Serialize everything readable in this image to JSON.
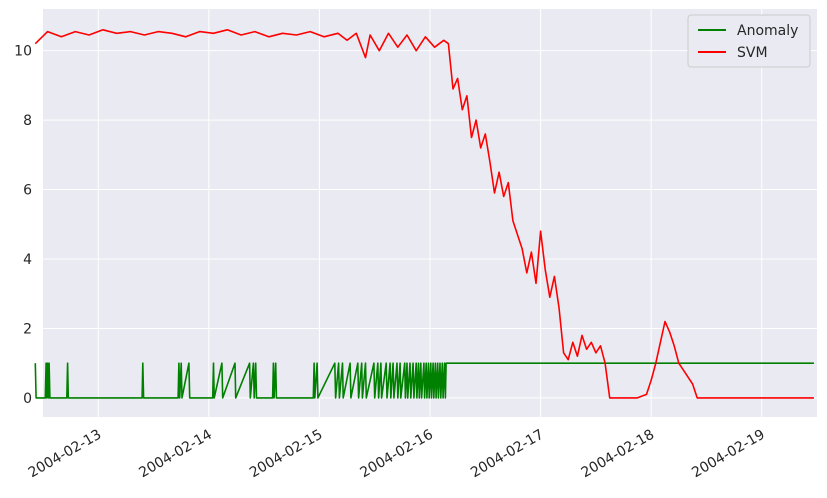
{
  "chart_data": {
    "type": "line",
    "grid": true,
    "background": "#eaeaf2",
    "legend_position": "top-right",
    "x_axis": {
      "type": "date",
      "range": [
        "2004-02-12T12:00",
        "2004-02-19T12:00"
      ],
      "tick_labels": [
        "2004-02-13",
        "2004-02-14",
        "2004-02-15",
        "2004-02-16",
        "2004-02-17",
        "2004-02-18",
        "2004-02-19"
      ]
    },
    "y_axis": {
      "range": [
        -0.55,
        11.2
      ],
      "tick_values": [
        0,
        2,
        4,
        6,
        8,
        10
      ],
      "tick_labels": [
        "0",
        "2",
        "4",
        "6",
        "8",
        "10"
      ]
    },
    "series": [
      {
        "name": "Anomaly",
        "color": "#008000",
        "points": [
          [
            "2004-02-12T10:20",
            1
          ],
          [
            "2004-02-12T10:30",
            0
          ],
          [
            "2004-02-12T12:30",
            0
          ],
          [
            "2004-02-12T12:40",
            1
          ],
          [
            "2004-02-12T12:50",
            0
          ],
          [
            "2004-02-12T13:00",
            1
          ],
          [
            "2004-02-12T13:10",
            0
          ],
          [
            "2004-02-12T13:20",
            1
          ],
          [
            "2004-02-12T13:30",
            0
          ],
          [
            "2004-02-12T17:10",
            0
          ],
          [
            "2004-02-12T17:20",
            1
          ],
          [
            "2004-02-12T17:30",
            0
          ],
          [
            "2004-02-13T09:30",
            0
          ],
          [
            "2004-02-13T09:40",
            1
          ],
          [
            "2004-02-13T09:50",
            0
          ],
          [
            "2004-02-13T17:20",
            0
          ],
          [
            "2004-02-13T17:30",
            1
          ],
          [
            "2004-02-13T17:40",
            0
          ],
          [
            "2004-02-13T18:00",
            1
          ],
          [
            "2004-02-13T18:10",
            0
          ],
          [
            "2004-02-13T19:40",
            1
          ],
          [
            "2004-02-13T19:50",
            0
          ],
          [
            "2004-02-14T00:50",
            0
          ],
          [
            "2004-02-14T01:00",
            1
          ],
          [
            "2004-02-14T01:10",
            0
          ],
          [
            "2004-02-14T02:50",
            1
          ],
          [
            "2004-02-14T03:00",
            0
          ],
          [
            "2004-02-14T05:40",
            1
          ],
          [
            "2004-02-14T05:50",
            0
          ],
          [
            "2004-02-14T08:50",
            1
          ],
          [
            "2004-02-14T09:00",
            0
          ],
          [
            "2004-02-14T09:40",
            1
          ],
          [
            "2004-02-14T09:50",
            0
          ],
          [
            "2004-02-14T10:10",
            1
          ],
          [
            "2004-02-14T10:20",
            0
          ],
          [
            "2004-02-14T13:50",
            0
          ],
          [
            "2004-02-14T14:00",
            1
          ],
          [
            "2004-02-14T14:10",
            0
          ],
          [
            "2004-02-14T14:30",
            1
          ],
          [
            "2004-02-14T14:40",
            0
          ],
          [
            "2004-02-14T22:40",
            0
          ],
          [
            "2004-02-14T22:50",
            1
          ],
          [
            "2004-02-14T23:00",
            0
          ],
          [
            "2004-02-14T23:30",
            1
          ],
          [
            "2004-02-14T23:40",
            0
          ],
          [
            "2004-02-15T03:20",
            1
          ],
          [
            "2004-02-15T03:30",
            0
          ],
          [
            "2004-02-15T04:10",
            1
          ],
          [
            "2004-02-15T04:20",
            0
          ],
          [
            "2004-02-15T05:00",
            1
          ],
          [
            "2004-02-15T05:10",
            0
          ],
          [
            "2004-02-15T06:40",
            1
          ],
          [
            "2004-02-15T06:50",
            0
          ],
          [
            "2004-02-15T08:20",
            1
          ],
          [
            "2004-02-15T08:30",
            0
          ],
          [
            "2004-02-15T09:10",
            1
          ],
          [
            "2004-02-15T09:20",
            0
          ],
          [
            "2004-02-15T10:00",
            1
          ],
          [
            "2004-02-15T10:10",
            0
          ],
          [
            "2004-02-15T11:50",
            1
          ],
          [
            "2004-02-15T12:00",
            0
          ],
          [
            "2004-02-15T12:40",
            1
          ],
          [
            "2004-02-15T12:50",
            0
          ],
          [
            "2004-02-15T13:20",
            1
          ],
          [
            "2004-02-15T13:30",
            0
          ],
          [
            "2004-02-15T14:30",
            1
          ],
          [
            "2004-02-15T14:40",
            0
          ],
          [
            "2004-02-15T15:20",
            1
          ],
          [
            "2004-02-15T15:30",
            0
          ],
          [
            "2004-02-15T16:00",
            1
          ],
          [
            "2004-02-15T16:10",
            0
          ],
          [
            "2004-02-15T16:50",
            1
          ],
          [
            "2004-02-15T17:00",
            0
          ],
          [
            "2004-02-15T17:30",
            1
          ],
          [
            "2004-02-15T17:40",
            0
          ],
          [
            "2004-02-15T18:30",
            1
          ],
          [
            "2004-02-15T18:40",
            0
          ],
          [
            "2004-02-15T19:00",
            1
          ],
          [
            "2004-02-15T19:10",
            0
          ],
          [
            "2004-02-15T19:40",
            1
          ],
          [
            "2004-02-15T19:50",
            0
          ],
          [
            "2004-02-15T20:20",
            1
          ],
          [
            "2004-02-15T20:30",
            0
          ],
          [
            "2004-02-15T21:00",
            1
          ],
          [
            "2004-02-15T21:10",
            0
          ],
          [
            "2004-02-15T21:30",
            1
          ],
          [
            "2004-02-15T21:40",
            0
          ],
          [
            "2004-02-15T22:00",
            1
          ],
          [
            "2004-02-15T22:10",
            0
          ],
          [
            "2004-02-15T22:40",
            1
          ],
          [
            "2004-02-15T22:50",
            0
          ],
          [
            "2004-02-15T23:10",
            1
          ],
          [
            "2004-02-15T23:20",
            0
          ],
          [
            "2004-02-15T23:40",
            1
          ],
          [
            "2004-02-15T23:50",
            0
          ],
          [
            "2004-02-16T00:10",
            1
          ],
          [
            "2004-02-16T00:20",
            0
          ],
          [
            "2004-02-16T00:40",
            1
          ],
          [
            "2004-02-16T00:50",
            0
          ],
          [
            "2004-02-16T01:10",
            1
          ],
          [
            "2004-02-16T01:20",
            0
          ],
          [
            "2004-02-16T01:40",
            1
          ],
          [
            "2004-02-16T01:50",
            0
          ],
          [
            "2004-02-16T02:10",
            1
          ],
          [
            "2004-02-16T02:20",
            0
          ],
          [
            "2004-02-16T02:40",
            1
          ],
          [
            "2004-02-16T02:50",
            0
          ],
          [
            "2004-02-16T03:10",
            1
          ],
          [
            "2004-02-16T03:20",
            0
          ],
          [
            "2004-02-16T03:30",
            1
          ],
          [
            "2004-02-19T11:20",
            1
          ]
        ]
      },
      {
        "name": "SVM",
        "color": "#ff0000",
        "points": [
          [
            "2004-02-12T10:20",
            10.2
          ],
          [
            "2004-02-12T13:00",
            10.55
          ],
          [
            "2004-02-12T16:00",
            10.4
          ],
          [
            "2004-02-12T19:00",
            10.55
          ],
          [
            "2004-02-12T22:00",
            10.45
          ],
          [
            "2004-02-13T01:00",
            10.6
          ],
          [
            "2004-02-13T04:00",
            10.5
          ],
          [
            "2004-02-13T07:00",
            10.55
          ],
          [
            "2004-02-13T10:00",
            10.45
          ],
          [
            "2004-02-13T13:00",
            10.55
          ],
          [
            "2004-02-13T16:00",
            10.5
          ],
          [
            "2004-02-13T19:00",
            10.4
          ],
          [
            "2004-02-13T22:00",
            10.55
          ],
          [
            "2004-02-14T01:00",
            10.5
          ],
          [
            "2004-02-14T04:00",
            10.6
          ],
          [
            "2004-02-14T07:00",
            10.45
          ],
          [
            "2004-02-14T10:00",
            10.55
          ],
          [
            "2004-02-14T13:00",
            10.4
          ],
          [
            "2004-02-14T16:00",
            10.5
          ],
          [
            "2004-02-14T19:00",
            10.45
          ],
          [
            "2004-02-14T22:00",
            10.55
          ],
          [
            "2004-02-15T01:00",
            10.4
          ],
          [
            "2004-02-15T04:00",
            10.5
          ],
          [
            "2004-02-15T06:00",
            10.3
          ],
          [
            "2004-02-15T08:00",
            10.5
          ],
          [
            "2004-02-15T10:00",
            9.8
          ],
          [
            "2004-02-15T11:00",
            10.45
          ],
          [
            "2004-02-15T13:00",
            10.0
          ],
          [
            "2004-02-15T15:00",
            10.5
          ],
          [
            "2004-02-15T17:00",
            10.1
          ],
          [
            "2004-02-15T19:00",
            10.45
          ],
          [
            "2004-02-15T21:00",
            10.0
          ],
          [
            "2004-02-15T23:00",
            10.4
          ],
          [
            "2004-02-16T01:00",
            10.1
          ],
          [
            "2004-02-16T03:00",
            10.3
          ],
          [
            "2004-02-16T04:00",
            10.2
          ],
          [
            "2004-02-16T05:00",
            8.9
          ],
          [
            "2004-02-16T06:00",
            9.2
          ],
          [
            "2004-02-16T07:00",
            8.3
          ],
          [
            "2004-02-16T08:00",
            8.7
          ],
          [
            "2004-02-16T09:00",
            7.5
          ],
          [
            "2004-02-16T10:00",
            8.0
          ],
          [
            "2004-02-16T11:00",
            7.2
          ],
          [
            "2004-02-16T12:00",
            7.6
          ],
          [
            "2004-02-16T13:00",
            6.8
          ],
          [
            "2004-02-16T14:00",
            5.9
          ],
          [
            "2004-02-16T15:00",
            6.5
          ],
          [
            "2004-02-16T16:00",
            5.8
          ],
          [
            "2004-02-16T17:00",
            6.2
          ],
          [
            "2004-02-16T18:00",
            5.1
          ],
          [
            "2004-02-16T19:00",
            4.7
          ],
          [
            "2004-02-16T20:00",
            4.3
          ],
          [
            "2004-02-16T21:00",
            3.6
          ],
          [
            "2004-02-16T22:00",
            4.2
          ],
          [
            "2004-02-16T23:00",
            3.3
          ],
          [
            "2004-02-17T00:00",
            4.8
          ],
          [
            "2004-02-17T01:00",
            3.7
          ],
          [
            "2004-02-17T02:00",
            2.9
          ],
          [
            "2004-02-17T03:00",
            3.5
          ],
          [
            "2004-02-17T04:00",
            2.6
          ],
          [
            "2004-02-17T05:00",
            1.3
          ],
          [
            "2004-02-17T06:00",
            1.1
          ],
          [
            "2004-02-17T07:00",
            1.6
          ],
          [
            "2004-02-17T08:00",
            1.2
          ],
          [
            "2004-02-17T09:00",
            1.8
          ],
          [
            "2004-02-17T10:00",
            1.4
          ],
          [
            "2004-02-17T11:00",
            1.6
          ],
          [
            "2004-02-17T12:00",
            1.3
          ],
          [
            "2004-02-17T13:00",
            1.5
          ],
          [
            "2004-02-17T14:00",
            1.0
          ],
          [
            "2004-02-17T15:00",
            0.0
          ],
          [
            "2004-02-17T18:00",
            0.0
          ],
          [
            "2004-02-17T21:00",
            0.0
          ],
          [
            "2004-02-17T23:00",
            0.1
          ],
          [
            "2004-02-18T00:00",
            0.5
          ],
          [
            "2004-02-18T01:00",
            1.0
          ],
          [
            "2004-02-18T02:00",
            1.6
          ],
          [
            "2004-02-18T03:00",
            2.2
          ],
          [
            "2004-02-18T04:00",
            1.9
          ],
          [
            "2004-02-18T05:00",
            1.5
          ],
          [
            "2004-02-18T06:00",
            1.0
          ],
          [
            "2004-02-18T07:00",
            0.8
          ],
          [
            "2004-02-18T08:00",
            0.6
          ],
          [
            "2004-02-18T09:00",
            0.4
          ],
          [
            "2004-02-18T10:00",
            0.0
          ],
          [
            "2004-02-18T14:00",
            0.0
          ],
          [
            "2004-02-18T20:00",
            0.0
          ],
          [
            "2004-02-19T11:20",
            0.0
          ]
        ]
      }
    ]
  }
}
